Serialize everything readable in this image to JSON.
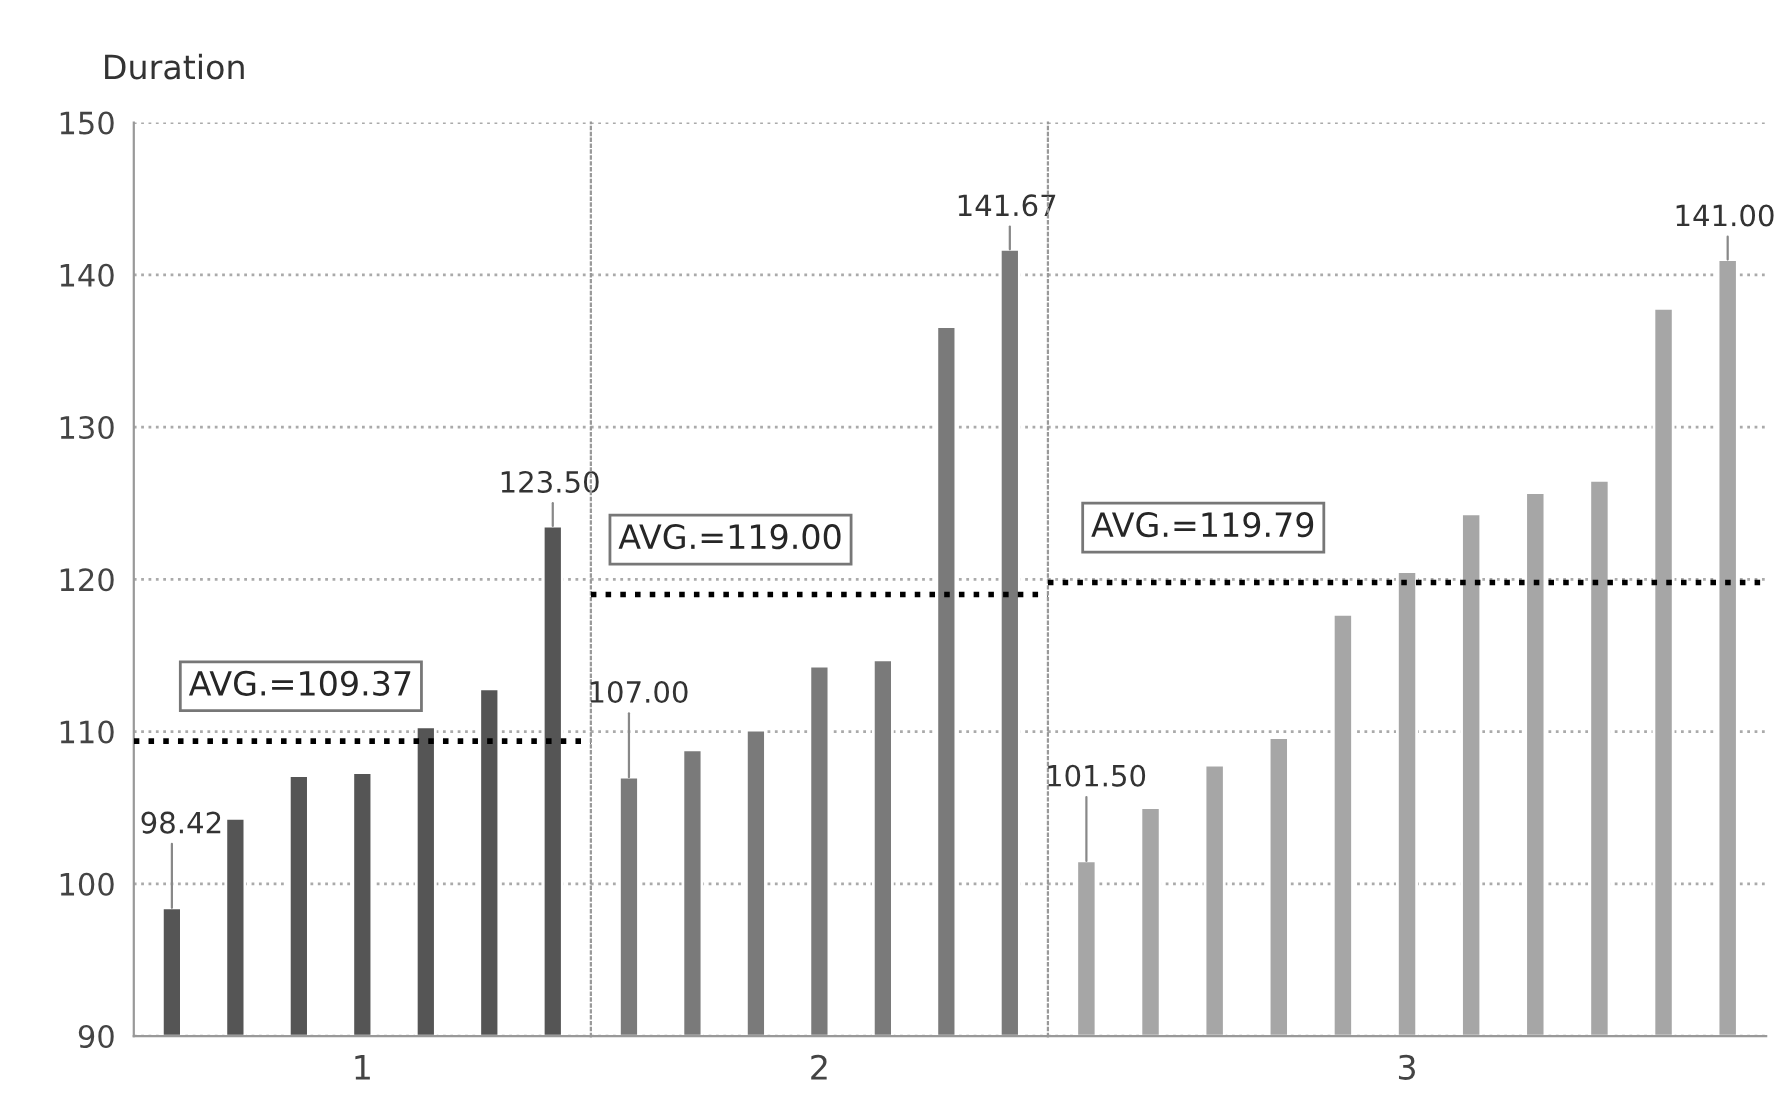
{
  "chart_data": [
    {
      "type": "bar",
      "ylabel": "Duration",
      "categories": [
        null,
        null,
        null,
        "1",
        null,
        null,
        null
      ],
      "values": [
        98.42,
        104.3,
        107.1,
        107.3,
        110.3,
        112.8,
        123.5
      ],
      "colors": [
        "#555555",
        "#555555",
        "#555555",
        "#555555",
        "#555555",
        "#555555",
        "#555555"
      ],
      "value_labels": [
        "98.42",
        null,
        null,
        null,
        null,
        null,
        "123.50"
      ],
      "ylim": [
        90,
        150
      ],
      "yticks": [
        90,
        100,
        110,
        120,
        130,
        140,
        150
      ],
      "grid": "y",
      "ref_lines": [
        {
          "axis": "y",
          "value": 109.37,
          "label": "AVG.=109.37",
          "color": "#000000",
          "line_style": "dotted"
        }
      ]
    },
    {
      "type": "bar",
      "categories": [
        null,
        null,
        null,
        "2",
        null,
        null,
        null
      ],
      "values": [
        107.0,
        108.8,
        110.1,
        114.3,
        114.7,
        136.6,
        141.67
      ],
      "colors": [
        "#7a7a7a",
        "#7a7a7a",
        "#7a7a7a",
        "#7a7a7a",
        "#7a7a7a",
        "#7a7a7a",
        "#7a7a7a"
      ],
      "value_labels": [
        "107.00",
        null,
        null,
        null,
        null,
        null,
        "141.67"
      ],
      "ylim": [
        90,
        150
      ],
      "yticks": [
        90,
        100,
        110,
        120,
        130,
        140,
        150
      ],
      "tick_labels": "x",
      "grid": "y",
      "ref_lines": [
        {
          "axis": "y",
          "value": 119.0,
          "label": "AVG.=119.00",
          "color": "#000000",
          "line_style": "dotted"
        }
      ]
    },
    {
      "type": "bar",
      "categories": [
        null,
        null,
        null,
        null,
        null,
        "3",
        null,
        null,
        null,
        null,
        null
      ],
      "values": [
        101.5,
        105.0,
        107.8,
        109.6,
        117.7,
        120.5,
        124.3,
        125.7,
        126.5,
        137.8,
        141.0
      ],
      "colors": [
        "#a6a6a6",
        "#a6a6a6",
        "#a6a6a6",
        "#a6a6a6",
        "#a6a6a6",
        "#a6a6a6",
        "#a6a6a6",
        "#a6a6a6",
        "#a6a6a6",
        "#a6a6a6",
        "#a6a6a6"
      ],
      "value_labels": [
        "101.50",
        null,
        null,
        null,
        null,
        null,
        null,
        null,
        null,
        null,
        "141.00"
      ],
      "ylim": [
        90,
        150
      ],
      "yticks": [
        90,
        100,
        110,
        120,
        130,
        140,
        150
      ],
      "tick_labels": "x",
      "grid": "y",
      "ref_lines": [
        {
          "axis": "y",
          "value": 119.79,
          "label": "AVG.=119.79",
          "color": "#000000",
          "line_style": "dotted"
        }
      ]
    }
  ]
}
